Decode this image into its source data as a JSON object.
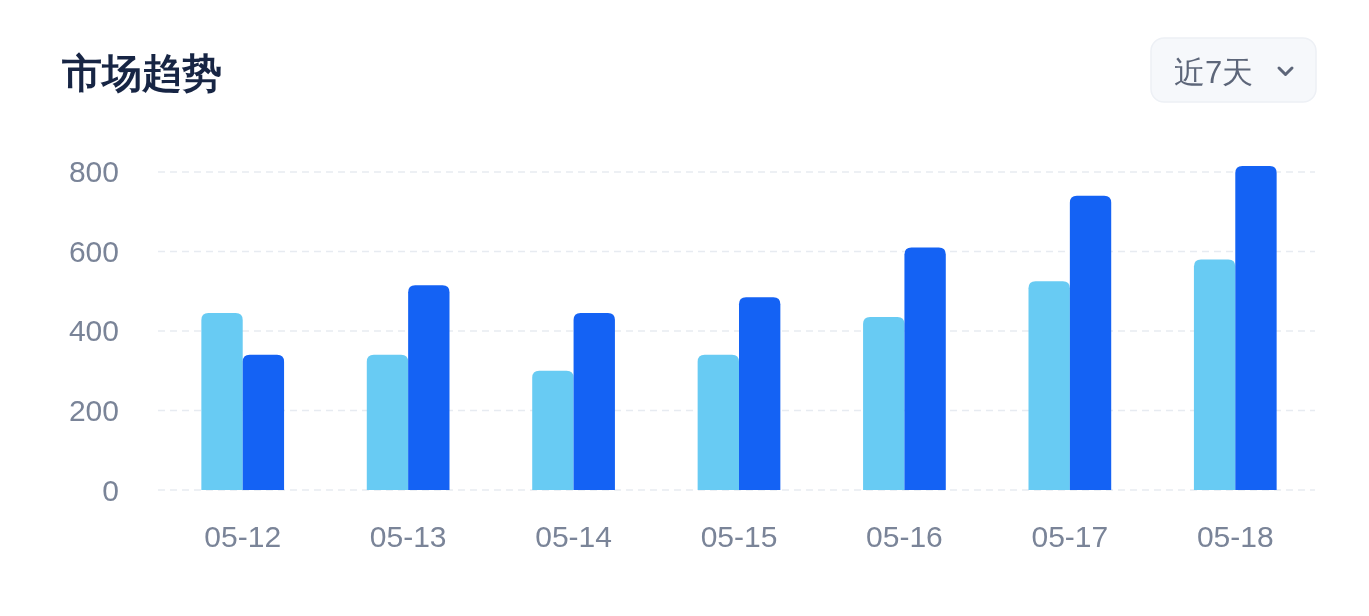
{
  "chart_data": {
    "type": "bar",
    "title": "市场趋势",
    "categories": [
      "05-12",
      "05-13",
      "05-14",
      "05-15",
      "05-16",
      "05-17",
      "05-18"
    ],
    "series": [
      {
        "color": "#68cbf3",
        "values": [
          445,
          340,
          300,
          340,
          435,
          525,
          580
        ]
      },
      {
        "color": "#1462f4",
        "values": [
          340,
          515,
          445,
          485,
          610,
          740,
          815
        ]
      }
    ],
    "ylim": [
      0,
      815
    ],
    "yticks": [
      0,
      200,
      400,
      600,
      800
    ],
    "grid": "y",
    "annotations": [
      "近7天"
    ]
  }
}
